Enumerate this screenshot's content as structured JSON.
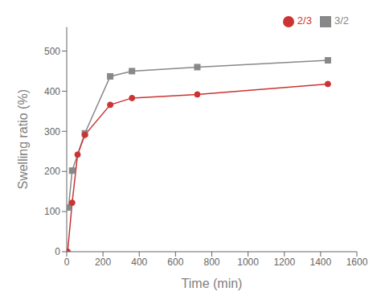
{
  "chart_data": {
    "type": "line",
    "xlabel": "Time (min)",
    "ylabel": "Swelling ratio (%)",
    "series": [
      {
        "name": "3/2",
        "color": "#888888",
        "marker": "square",
        "x": [
          10,
          30,
          100,
          240,
          360,
          720,
          1440
        ],
        "values": [
          110,
          202,
          295,
          437,
          450,
          460,
          477
        ]
      },
      {
        "name": "2/3",
        "color": "#cc3333",
        "marker": "circle",
        "x": [
          5,
          30,
          60,
          100,
          240,
          360,
          720,
          1440
        ],
        "values": [
          0,
          122,
          242,
          291,
          366,
          383,
          392,
          418
        ]
      }
    ],
    "xlim": [
      0,
      1600
    ],
    "ylim": [
      0,
      560
    ],
    "xticks": [
      0,
      200,
      400,
      600,
      800,
      1000,
      1200,
      1400,
      1600
    ],
    "yticks": [
      0,
      100,
      200,
      300,
      400,
      500
    ],
    "legend": "upper right",
    "grid": false
  }
}
